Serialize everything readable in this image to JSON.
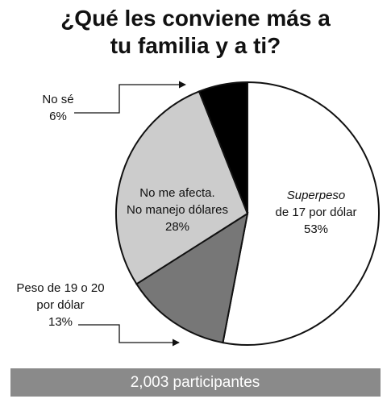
{
  "chart_data": {
    "type": "pie",
    "title": "¿Qué les conviene más a tu familia y a ti?",
    "slices": [
      {
        "label": [
          "Superpeso",
          "de 17 por dólar"
        ],
        "color": "#ffffff"
      },
      {
        "label": [
          "Peso de 19 o 20",
          "por dólar"
        ],
        "color": "#777777"
      },
      {
        "label": [
          "No me afecta.",
          "No manejo dólares"
        ],
        "color": "#cccccc"
      },
      {
        "label": [
          "No sé"
        ],
        "color": "#000000"
      }
    ],
    "values": [
      53,
      13,
      28,
      6
    ],
    "value_labels": [
      "53%",
      "13%",
      "28%",
      "6%"
    ],
    "note": "2,003 participantes"
  }
}
